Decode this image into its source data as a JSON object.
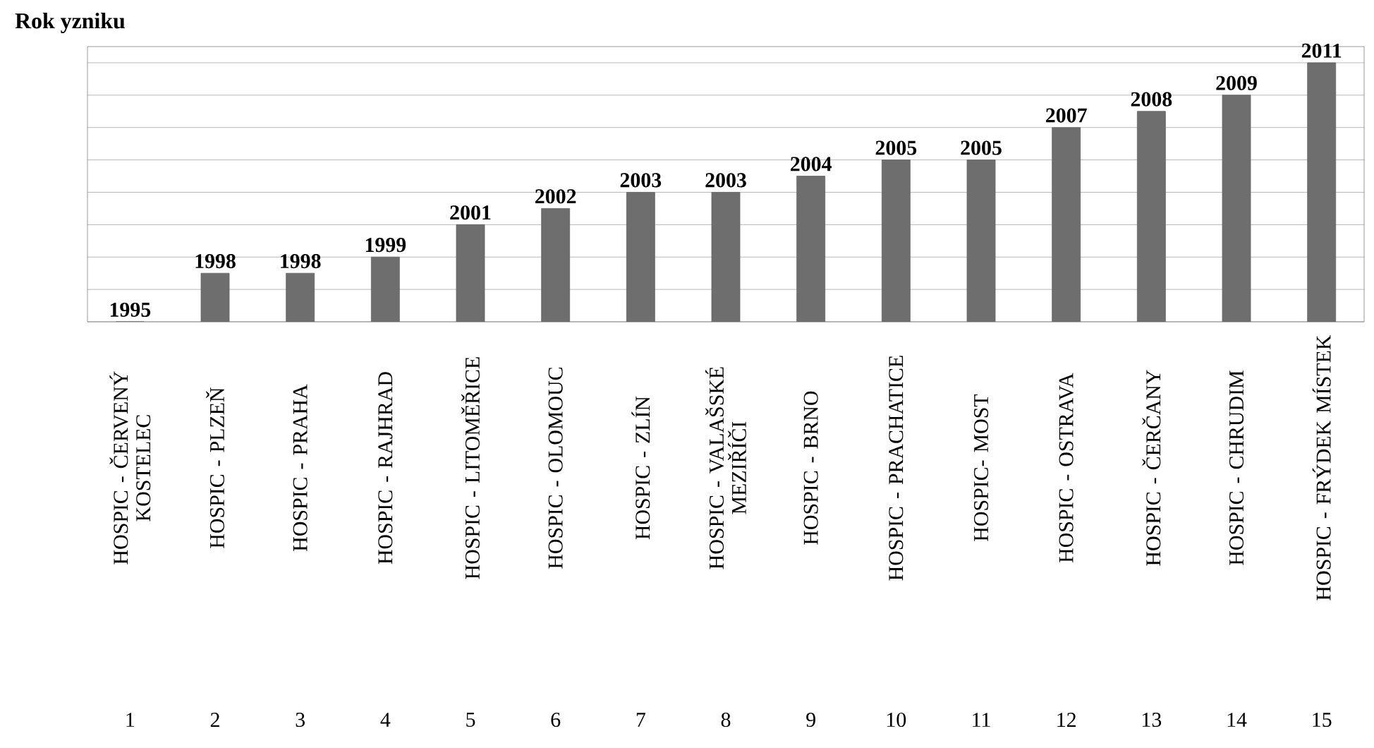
{
  "chart_data": {
    "type": "bar",
    "title": "Rok yzniku",
    "categories": [
      "HOSPIC - ČERVENÝ KOSTELEC",
      "HOSPIC - PLZEŇ",
      "HOSPIC - PRAHA",
      "HOSPIC - RAJHRAD",
      "HOSPIC - LITOMĚŘICE",
      "HOSPIC - OLOMOUC",
      "HOSPIC - ZLÍN",
      "HOSPIC - VALAŠSKÉ MEZIŘÍČI",
      "HOSPIC - BRNO",
      "HOSPIC - PRACHATICE",
      "HOSPIC- MOST",
      "HOSPIC - OSTRAVA",
      "HOSPIC - ČERČANY",
      "HOSPIC - CHRUDIM",
      "HOSPIC - FRÝDEK MÍSTEK"
    ],
    "values": [
      1995,
      1998,
      1998,
      1999,
      2001,
      2002,
      2003,
      2003,
      2004,
      2005,
      2005,
      2007,
      2008,
      2009,
      2011
    ],
    "color": "#6e6e6e",
    "ylim": [
      1995,
      2012
    ],
    "yticks": [
      {
        "value": 1995,
        "label": null
      },
      {
        "value": 1997,
        "label": null
      },
      {
        "value": 1999,
        "label": null
      },
      {
        "value": 2001,
        "label": null
      },
      {
        "value": 2003,
        "label": null
      },
      {
        "value": 2005,
        "label": null
      },
      {
        "value": 2007,
        "label": null
      },
      {
        "value": 2009,
        "label": null
      },
      {
        "value": 2011,
        "label": null
      }
    ],
    "grid": "y",
    "tick_labels": "x",
    "data_labels": true,
    "annotations": [
      "1",
      "2",
      "3",
      "4",
      "5",
      "6",
      "7",
      "8",
      "9",
      "10",
      "11",
      "12",
      "13",
      "14",
      "15"
    ]
  }
}
